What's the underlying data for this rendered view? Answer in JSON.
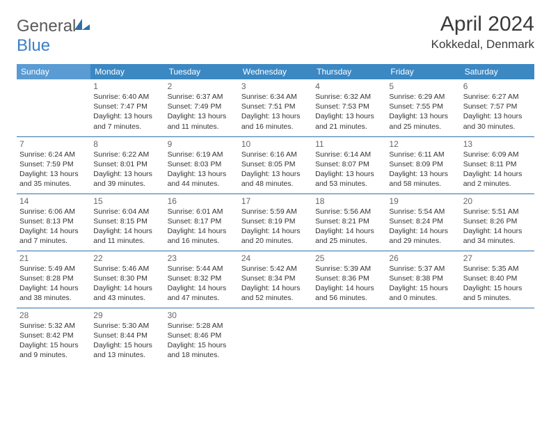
{
  "logo": {
    "text_gray": "General",
    "text_blue": "Blue"
  },
  "title": "April 2024",
  "location": "Kokkedal, Denmark",
  "colors": {
    "header_bg": "#3b88c3",
    "header_bg_sunday": "#5a9bd4",
    "header_text": "#ffffff",
    "row_border": "#2f6fa8",
    "text": "#333333",
    "daynum": "#666666",
    "logo_gray": "#5a5a5a",
    "logo_blue": "#3b7fc4"
  },
  "weekdays": [
    "Sunday",
    "Monday",
    "Tuesday",
    "Wednesday",
    "Thursday",
    "Friday",
    "Saturday"
  ],
  "weeks": [
    [
      null,
      {
        "n": "1",
        "sr": "Sunrise: 6:40 AM",
        "ss": "Sunset: 7:47 PM",
        "dl": "Daylight: 13 hours and 7 minutes."
      },
      {
        "n": "2",
        "sr": "Sunrise: 6:37 AM",
        "ss": "Sunset: 7:49 PM",
        "dl": "Daylight: 13 hours and 11 minutes."
      },
      {
        "n": "3",
        "sr": "Sunrise: 6:34 AM",
        "ss": "Sunset: 7:51 PM",
        "dl": "Daylight: 13 hours and 16 minutes."
      },
      {
        "n": "4",
        "sr": "Sunrise: 6:32 AM",
        "ss": "Sunset: 7:53 PM",
        "dl": "Daylight: 13 hours and 21 minutes."
      },
      {
        "n": "5",
        "sr": "Sunrise: 6:29 AM",
        "ss": "Sunset: 7:55 PM",
        "dl": "Daylight: 13 hours and 25 minutes."
      },
      {
        "n": "6",
        "sr": "Sunrise: 6:27 AM",
        "ss": "Sunset: 7:57 PM",
        "dl": "Daylight: 13 hours and 30 minutes."
      }
    ],
    [
      {
        "n": "7",
        "sr": "Sunrise: 6:24 AM",
        "ss": "Sunset: 7:59 PM",
        "dl": "Daylight: 13 hours and 35 minutes."
      },
      {
        "n": "8",
        "sr": "Sunrise: 6:22 AM",
        "ss": "Sunset: 8:01 PM",
        "dl": "Daylight: 13 hours and 39 minutes."
      },
      {
        "n": "9",
        "sr": "Sunrise: 6:19 AM",
        "ss": "Sunset: 8:03 PM",
        "dl": "Daylight: 13 hours and 44 minutes."
      },
      {
        "n": "10",
        "sr": "Sunrise: 6:16 AM",
        "ss": "Sunset: 8:05 PM",
        "dl": "Daylight: 13 hours and 48 minutes."
      },
      {
        "n": "11",
        "sr": "Sunrise: 6:14 AM",
        "ss": "Sunset: 8:07 PM",
        "dl": "Daylight: 13 hours and 53 minutes."
      },
      {
        "n": "12",
        "sr": "Sunrise: 6:11 AM",
        "ss": "Sunset: 8:09 PM",
        "dl": "Daylight: 13 hours and 58 minutes."
      },
      {
        "n": "13",
        "sr": "Sunrise: 6:09 AM",
        "ss": "Sunset: 8:11 PM",
        "dl": "Daylight: 14 hours and 2 minutes."
      }
    ],
    [
      {
        "n": "14",
        "sr": "Sunrise: 6:06 AM",
        "ss": "Sunset: 8:13 PM",
        "dl": "Daylight: 14 hours and 7 minutes."
      },
      {
        "n": "15",
        "sr": "Sunrise: 6:04 AM",
        "ss": "Sunset: 8:15 PM",
        "dl": "Daylight: 14 hours and 11 minutes."
      },
      {
        "n": "16",
        "sr": "Sunrise: 6:01 AM",
        "ss": "Sunset: 8:17 PM",
        "dl": "Daylight: 14 hours and 16 minutes."
      },
      {
        "n": "17",
        "sr": "Sunrise: 5:59 AM",
        "ss": "Sunset: 8:19 PM",
        "dl": "Daylight: 14 hours and 20 minutes."
      },
      {
        "n": "18",
        "sr": "Sunrise: 5:56 AM",
        "ss": "Sunset: 8:21 PM",
        "dl": "Daylight: 14 hours and 25 minutes."
      },
      {
        "n": "19",
        "sr": "Sunrise: 5:54 AM",
        "ss": "Sunset: 8:24 PM",
        "dl": "Daylight: 14 hours and 29 minutes."
      },
      {
        "n": "20",
        "sr": "Sunrise: 5:51 AM",
        "ss": "Sunset: 8:26 PM",
        "dl": "Daylight: 14 hours and 34 minutes."
      }
    ],
    [
      {
        "n": "21",
        "sr": "Sunrise: 5:49 AM",
        "ss": "Sunset: 8:28 PM",
        "dl": "Daylight: 14 hours and 38 minutes."
      },
      {
        "n": "22",
        "sr": "Sunrise: 5:46 AM",
        "ss": "Sunset: 8:30 PM",
        "dl": "Daylight: 14 hours and 43 minutes."
      },
      {
        "n": "23",
        "sr": "Sunrise: 5:44 AM",
        "ss": "Sunset: 8:32 PM",
        "dl": "Daylight: 14 hours and 47 minutes."
      },
      {
        "n": "24",
        "sr": "Sunrise: 5:42 AM",
        "ss": "Sunset: 8:34 PM",
        "dl": "Daylight: 14 hours and 52 minutes."
      },
      {
        "n": "25",
        "sr": "Sunrise: 5:39 AM",
        "ss": "Sunset: 8:36 PM",
        "dl": "Daylight: 14 hours and 56 minutes."
      },
      {
        "n": "26",
        "sr": "Sunrise: 5:37 AM",
        "ss": "Sunset: 8:38 PM",
        "dl": "Daylight: 15 hours and 0 minutes."
      },
      {
        "n": "27",
        "sr": "Sunrise: 5:35 AM",
        "ss": "Sunset: 8:40 PM",
        "dl": "Daylight: 15 hours and 5 minutes."
      }
    ],
    [
      {
        "n": "28",
        "sr": "Sunrise: 5:32 AM",
        "ss": "Sunset: 8:42 PM",
        "dl": "Daylight: 15 hours and 9 minutes."
      },
      {
        "n": "29",
        "sr": "Sunrise: 5:30 AM",
        "ss": "Sunset: 8:44 PM",
        "dl": "Daylight: 15 hours and 13 minutes."
      },
      {
        "n": "30",
        "sr": "Sunrise: 5:28 AM",
        "ss": "Sunset: 8:46 PM",
        "dl": "Daylight: 15 hours and 18 minutes."
      },
      null,
      null,
      null,
      null
    ]
  ]
}
